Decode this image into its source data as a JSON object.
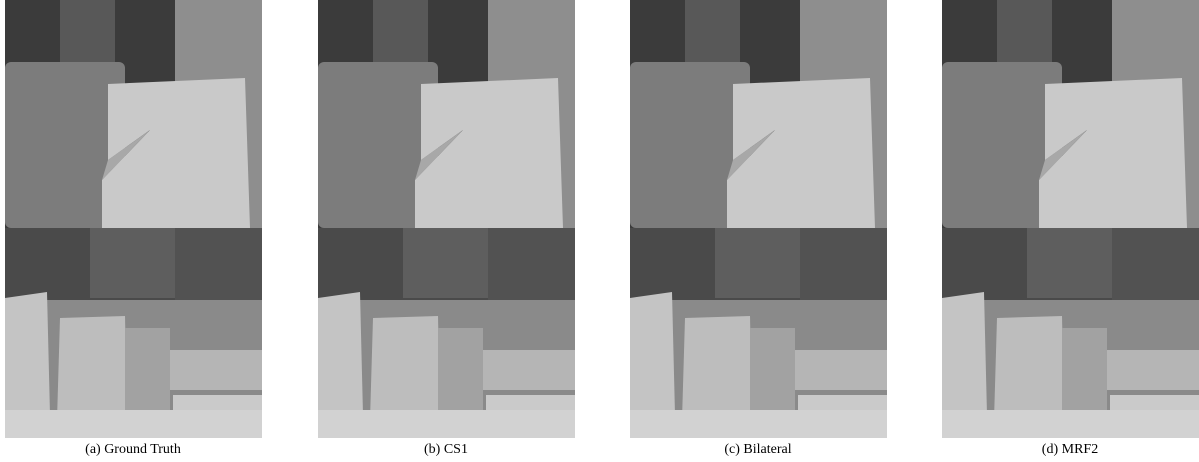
{
  "figure": {
    "panels": [
      {
        "caption": "(a) Ground Truth"
      },
      {
        "caption": "(b) CS1"
      },
      {
        "caption": "(c) Bilateral"
      },
      {
        "caption": "(d) MRF2"
      }
    ]
  }
}
